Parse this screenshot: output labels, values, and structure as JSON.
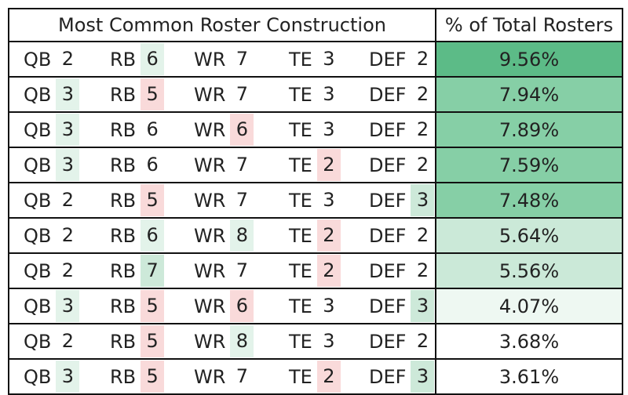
{
  "header": {
    "construction_label": "Most Common Roster Construction",
    "pct_label": "% of Total Rosters"
  },
  "positions": [
    "QB",
    "RB",
    "WR",
    "TE",
    "DEF"
  ],
  "colors": {
    "val_green": "#e3f3ea",
    "val_green_strong": "#cde9d9",
    "val_red": "#f9dada",
    "pct_scale": [
      "#5cbb87",
      "#86cfa6",
      "#cbe9d8",
      "#eef8f2",
      "#ffffff"
    ]
  },
  "rows": [
    {
      "values": [
        "2",
        "6",
        "7",
        "3",
        "2"
      ],
      "tones": [
        "",
        "g",
        "",
        "",
        ""
      ],
      "pct": "9.56%",
      "pct_tone": 0
    },
    {
      "values": [
        "3",
        "5",
        "7",
        "3",
        "2"
      ],
      "tones": [
        "g",
        "r",
        "",
        "",
        ""
      ],
      "pct": "7.94%",
      "pct_tone": 1
    },
    {
      "values": [
        "3",
        "6",
        "6",
        "3",
        "2"
      ],
      "tones": [
        "g",
        "",
        "r",
        "",
        ""
      ],
      "pct": "7.89%",
      "pct_tone": 1
    },
    {
      "values": [
        "3",
        "6",
        "7",
        "2",
        "2"
      ],
      "tones": [
        "g",
        "",
        "",
        "r",
        ""
      ],
      "pct": "7.59%",
      "pct_tone": 1
    },
    {
      "values": [
        "2",
        "5",
        "7",
        "3",
        "3"
      ],
      "tones": [
        "",
        "r",
        "",
        "",
        "G"
      ],
      "pct": "7.48%",
      "pct_tone": 1
    },
    {
      "values": [
        "2",
        "6",
        "8",
        "2",
        "2"
      ],
      "tones": [
        "",
        "g",
        "g",
        "r",
        ""
      ],
      "pct": "5.64%",
      "pct_tone": 2
    },
    {
      "values": [
        "2",
        "7",
        "7",
        "2",
        "2"
      ],
      "tones": [
        "",
        "G",
        "",
        "r",
        ""
      ],
      "pct": "5.56%",
      "pct_tone": 2
    },
    {
      "values": [
        "3",
        "5",
        "6",
        "3",
        "3"
      ],
      "tones": [
        "g",
        "r",
        "r",
        "",
        "G"
      ],
      "pct": "4.07%",
      "pct_tone": 3
    },
    {
      "values": [
        "2",
        "5",
        "8",
        "3",
        "2"
      ],
      "tones": [
        "",
        "r",
        "g",
        "",
        ""
      ],
      "pct": "3.68%",
      "pct_tone": 4
    },
    {
      "values": [
        "3",
        "5",
        "7",
        "2",
        "3"
      ],
      "tones": [
        "g",
        "r",
        "",
        "r",
        "G"
      ],
      "pct": "3.61%",
      "pct_tone": 4
    }
  ]
}
